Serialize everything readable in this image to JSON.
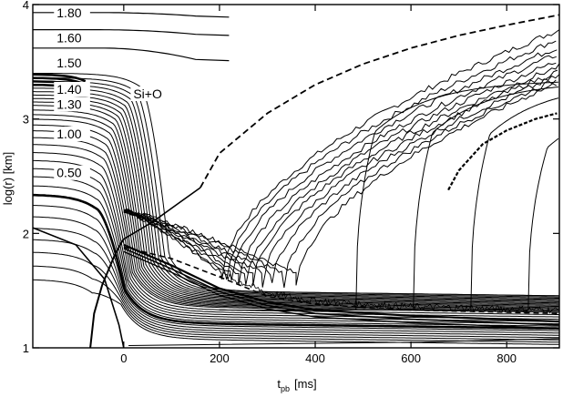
{
  "chart_data": {
    "type": "line",
    "xlabel": "t_pb [ms]",
    "xlabel_main": "t",
    "xlabel_sub": "pb",
    "xlabel_unit": "[ms]",
    "ylabel": "log(r) [km]",
    "xlim": [
      -190,
      910
    ],
    "ylim": [
      1,
      4
    ],
    "xticks": [
      0,
      200,
      400,
      600,
      800
    ],
    "yticks": [
      1,
      2,
      3,
      4
    ],
    "grid": false,
    "legend": "none",
    "annotations": [
      {
        "text": "1.80",
        "x": -140,
        "y": 3.93
      },
      {
        "text": "1.60",
        "x": -140,
        "y": 3.71
      },
      {
        "text": "1.50",
        "x": -140,
        "y": 3.49
      },
      {
        "text": "1.40",
        "x": -140,
        "y": 3.26
      },
      {
        "text": "1.30",
        "x": -140,
        "y": 3.13
      },
      {
        "text": "Si+O",
        "x": 20,
        "y": 3.22
      },
      {
        "text": "1.00",
        "x": -140,
        "y": 2.87
      },
      {
        "text": "0.50",
        "x": -140,
        "y": 2.53
      }
    ],
    "series": [
      {
        "role": "outer_mass_shells",
        "values": [
          {
            "y0": 3.93,
            "y1": 3.9
          },
          {
            "y0": 3.78,
            "y1": 3.74
          },
          {
            "y0": 3.62,
            "y1": 3.52
          }
        ]
      },
      {
        "role": "infalling_mass_shells",
        "values": [
          {
            "y0": 3.4,
            "y1": 1.5,
            "tc": 95
          },
          {
            "y0": 3.36,
            "y1": 1.5,
            "tc": 85
          },
          {
            "y0": 3.33,
            "y1": 1.49,
            "tc": 78
          },
          {
            "y0": 3.3,
            "y1": 1.48,
            "tc": 72
          },
          {
            "y0": 3.27,
            "y1": 1.47,
            "tc": 66
          },
          {
            "y0": 3.24,
            "y1": 1.46,
            "tc": 61
          },
          {
            "y0": 3.21,
            "y1": 1.45,
            "tc": 56
          },
          {
            "y0": 3.18,
            "y1": 1.44,
            "tc": 51
          },
          {
            "y0": 3.15,
            "y1": 1.43,
            "tc": 46
          },
          {
            "y0": 3.12,
            "y1": 1.42,
            "tc": 41
          },
          {
            "y0": 3.08,
            "y1": 1.41,
            "tc": 37
          },
          {
            "y0": 3.04,
            "y1": 1.4,
            "tc": 33
          },
          {
            "y0": 3.0,
            "y1": 1.39,
            "tc": 29
          },
          {
            "y0": 2.95,
            "y1": 1.38,
            "tc": 25
          },
          {
            "y0": 2.9,
            "y1": 1.37,
            "tc": 21
          },
          {
            "y0": 2.84,
            "y1": 1.36,
            "tc": 18
          },
          {
            "y0": 2.78,
            "y1": 1.34,
            "tc": 15
          },
          {
            "y0": 2.71,
            "y1": 1.32,
            "tc": 12
          },
          {
            "y0": 2.64,
            "y1": 1.3,
            "tc": 9
          },
          {
            "y0": 2.57,
            "y1": 1.28,
            "tc": 7
          },
          {
            "y0": 2.5,
            "y1": 1.26,
            "tc": 5
          },
          {
            "y0": 2.42,
            "y1": 1.24,
            "tc": 3
          },
          {
            "y0": 2.34,
            "y1": 1.22,
            "tc": 1
          },
          {
            "y0": 2.25,
            "y1": 1.2,
            "tc": 0
          },
          {
            "y0": 2.15,
            "y1": 1.18,
            "tc": -1
          },
          {
            "y0": 2.05,
            "y1": 1.16,
            "tc": -2
          },
          {
            "y0": 1.95,
            "y1": 1.14,
            "tc": -3
          },
          {
            "y0": 1.84,
            "y1": 1.12,
            "tc": -4
          },
          {
            "y0": 1.72,
            "y1": 1.1,
            "tc": -5
          },
          {
            "y0": 1.6,
            "y1": 1.08,
            "tc": -6
          }
        ]
      },
      {
        "role": "shock_dashed",
        "values": [
          {
            "x": 160,
            "y": 2.4
          },
          {
            "x": 200,
            "y": 2.7
          },
          {
            "x": 300,
            "y": 3.05
          },
          {
            "x": 400,
            "y": 3.3
          },
          {
            "x": 500,
            "y": 3.48
          },
          {
            "x": 600,
            "y": 3.62
          },
          {
            "x": 700,
            "y": 3.73
          },
          {
            "x": 800,
            "y": 3.82
          },
          {
            "x": 910,
            "y": 3.91
          }
        ]
      },
      {
        "role": "ejected_shells",
        "values": [
          {
            "t_turn": 205,
            "y_end": 3.78
          },
          {
            "t_turn": 215,
            "y_end": 3.7
          },
          {
            "t_turn": 225,
            "y_end": 3.63
          },
          {
            "t_turn": 240,
            "y_end": 3.57
          },
          {
            "t_turn": 255,
            "y_end": 3.51
          },
          {
            "t_turn": 270,
            "y_end": 3.46
          },
          {
            "t_turn": 290,
            "y_end": 3.42
          },
          {
            "t_turn": 310,
            "y_end": 3.38
          },
          {
            "t_turn": 335,
            "y_end": 3.35
          },
          {
            "t_turn": 360,
            "y_end": 3.32
          }
        ]
      },
      {
        "role": "late_ejected_shells",
        "values": [
          {
            "t_rise": 500,
            "y_end": 3.34
          },
          {
            "t_rise": 620,
            "y_end": 3.33
          },
          {
            "t_rise": 740,
            "y_end": 3.32
          },
          {
            "t_rise": 860,
            "y_end": 3.2
          }
        ]
      },
      {
        "role": "neutron_star_surface",
        "values": [
          {
            "x": 0,
            "y": 1.9
          },
          {
            "x": 100,
            "y": 1.72
          },
          {
            "x": 200,
            "y": 1.52
          },
          {
            "x": 300,
            "y": 1.4
          },
          {
            "x": 400,
            "y": 1.33
          },
          {
            "x": 600,
            "y": 1.28
          },
          {
            "x": 910,
            "y": 1.23
          }
        ]
      },
      {
        "role": "gain_radius_dashed",
        "values": [
          {
            "x": 0,
            "y": 1.88
          },
          {
            "x": 100,
            "y": 1.78
          },
          {
            "x": 200,
            "y": 1.62
          },
          {
            "x": 300,
            "y": 1.45
          },
          {
            "x": 400,
            "y": 1.38
          },
          {
            "x": 600,
            "y": 1.33
          },
          {
            "x": 910,
            "y": 1.3
          }
        ]
      },
      {
        "role": "wind_segment",
        "values": [
          {
            "x": 678,
            "y": 2.38
          },
          {
            "x": 700,
            "y": 2.55
          },
          {
            "x": 750,
            "y": 2.78
          },
          {
            "x": 800,
            "y": 2.9
          },
          {
            "x": 860,
            "y": 3.0
          },
          {
            "x": 905,
            "y": 3.05
          }
        ]
      }
    ]
  }
}
